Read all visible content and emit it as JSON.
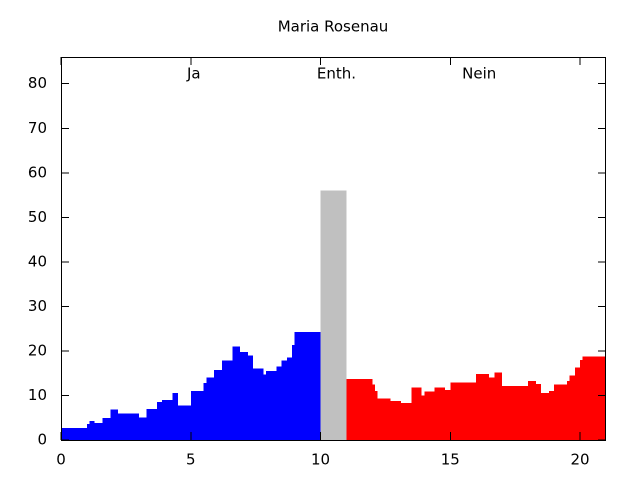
{
  "chart_data": {
    "type": "step-area",
    "title": "Maria Rosenau",
    "xlim": [
      0,
      21
    ],
    "ylim": [
      0,
      86
    ],
    "xticks": [
      0,
      5,
      10,
      15,
      20
    ],
    "yticks": [
      0,
      10,
      20,
      30,
      40,
      50,
      60,
      70,
      80
    ],
    "series": [
      {
        "name": "Ja",
        "color": "#0000ff",
        "x": [
          0,
          1.0,
          1.1,
          1.3,
          1.6,
          1.9,
          2.2,
          3.0,
          3.3,
          3.7,
          3.9,
          4.3,
          4.5,
          5.0,
          5.5,
          5.6,
          5.9,
          6.2,
          6.6,
          6.9,
          7.2,
          7.4,
          7.8,
          7.9,
          8.3,
          8.5,
          8.7,
          8.9,
          9.0
        ],
        "values": [
          2.7,
          3.6,
          4.3,
          3.8,
          4.9,
          6.9,
          6.0,
          5.0,
          7.0,
          8.5,
          9.0,
          10.5,
          7.8,
          11.0,
          12.8,
          14.0,
          15.7,
          17.9,
          21.0,
          19.8,
          19.0,
          16.0,
          14.7,
          15.5,
          16.5,
          17.8,
          18.5,
          21.3,
          24.3
        ]
      },
      {
        "name": "Enth.",
        "color": "#c0c0c0",
        "x": [
          10
        ],
        "values": [
          56
        ]
      },
      {
        "name": "Nein",
        "color": "#ff0000",
        "x": [
          11,
          12.0,
          12.1,
          12.2,
          12.7,
          13.1,
          13.5,
          13.9,
          14.0,
          14.4,
          14.8,
          15.0,
          16.0,
          16.5,
          16.7,
          17.0,
          18.0,
          18.3,
          18.5,
          18.8,
          19.0,
          19.5,
          19.6,
          19.8,
          20.0,
          20.1
        ],
        "values": [
          13.7,
          12.5,
          11.0,
          9.3,
          8.8,
          8.3,
          11.8,
          10.0,
          10.9,
          11.8,
          11.2,
          12.9,
          14.8,
          14.0,
          15.2,
          12.1,
          13.2,
          12.6,
          10.5,
          11.0,
          12.5,
          13.3,
          14.5,
          16.3,
          18.0,
          18.8
        ]
      }
    ]
  }
}
